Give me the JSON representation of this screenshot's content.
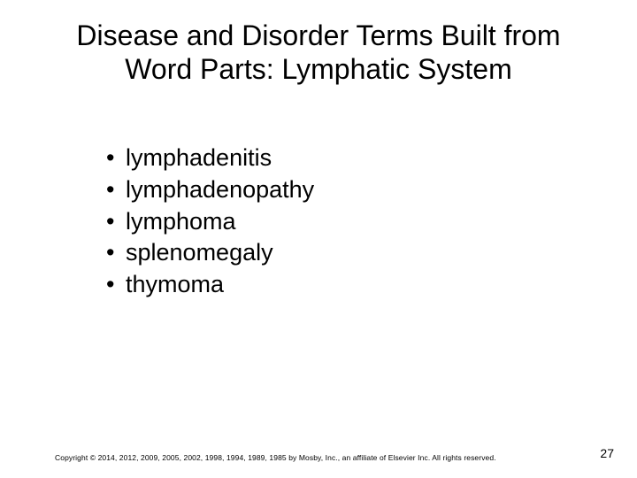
{
  "slide": {
    "background_color": "#ffffff",
    "text_color": "#000000",
    "title": {
      "text": "Disease and Disorder Terms Built from Word Parts: Lymphatic System",
      "fontsize": 32,
      "font_weight": 400,
      "align": "center"
    },
    "bullets": {
      "fontsize": 27,
      "items": [
        "lymphadenitis",
        "lymphadenopathy",
        "lymphoma",
        "splenomegaly",
        "thymoma"
      ]
    },
    "footer": {
      "copyright": "Copyright © 2014, 2012, 2009, 2005, 2002, 1998, 1994, 1989, 1985 by Mosby, Inc., an affiliate of Elsevier Inc. All rights reserved.",
      "copyright_fontsize": 8.5,
      "page_number": "27",
      "page_number_fontsize": 14
    }
  }
}
